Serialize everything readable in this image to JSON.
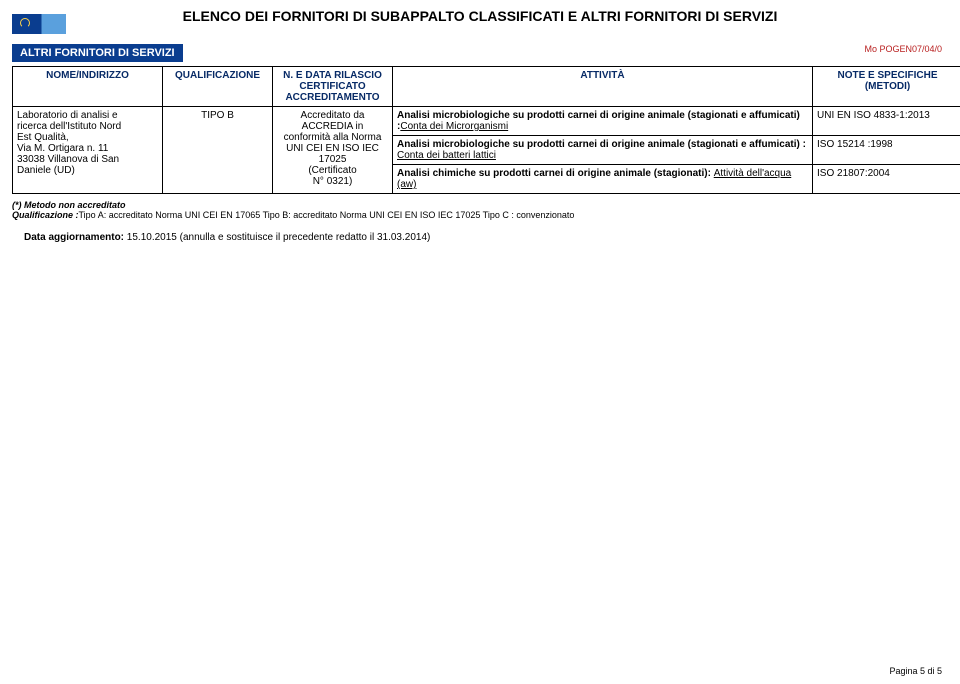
{
  "header": {
    "title": "ELENCO DEI FORNITORI DI SUBAPPALTO CLASSIFICATI E ALTRI FORNITORI DI SERVIZI",
    "doc_code": "Mo POGEN07/04/0"
  },
  "section": {
    "label": "ALTRI FORNITORI DI SERVIZI"
  },
  "table": {
    "headers": {
      "name": "NOME/INDIRIZZO",
      "qual": "QUALIFICAZIONE",
      "cert": "N. E DATA RILASCIO CERTIFICATO ACCREDITAMENTO",
      "act": "ATTIVITÀ",
      "note": "NOTE E SPECIFICHE (METODI)"
    },
    "row1": {
      "name_l1": "Laboratorio di analisi e",
      "name_l2": "ricerca dell'Istituto Nord",
      "name_l3": "Est Qualità,",
      "name_l4": "Via M. Ortigara n. 11",
      "name_l5": "33038 Villanova di San",
      "name_l6": "Daniele (UD)",
      "qual": "TIPO B",
      "cert_l1": "Accreditato da",
      "cert_l2": "ACCREDIA in",
      "cert_l3": "conformità alla Norma",
      "cert_l4": "UNI CEI EN ISO IEC",
      "cert_l5": "17025",
      "cert_l6": "(Certificato",
      "cert_l7": "N° 0321)",
      "act1_pre": "Analisi microbiologiche su prodotti carnei di origine animale (stagionati e affumicati) :",
      "act1_u": "Conta dei Microrganismi",
      "note1": "UNI EN ISO 4833-1:2013",
      "act2_pre": "Analisi microbiologiche su prodotti carnei di origine animale (stagionati e affumicati) : ",
      "act2_u": "Conta dei batteri lattici",
      "note2": "ISO 15214 :1998",
      "act3_pre": "Analisi chimiche su prodotti carnei di origine animale (stagionati): ",
      "act3_u": "Attività dell'acqua (aw)",
      "note3": "ISO 21807:2004"
    }
  },
  "footnotes": {
    "fn1": "(*) Metodo non accreditato",
    "fn2_b": "Qualificazione :",
    "fn2_rest": "Tipo A: accreditato Norma UNI CEI EN 17065  Tipo B: accreditato Norma UNI CEI EN ISO IEC 17025 Tipo C : convenzionato"
  },
  "update": {
    "label_b": "Data aggiornamento: ",
    "text": "15.10.2015 (annulla e sostituisce il precedente redatto il 31.03.2014)"
  },
  "pagefoot": {
    "text": "Pagina 5 di 5"
  },
  "colors": {
    "header_blue": "#0a3d8f",
    "red": "#b92020",
    "th_text": "#072a66"
  }
}
